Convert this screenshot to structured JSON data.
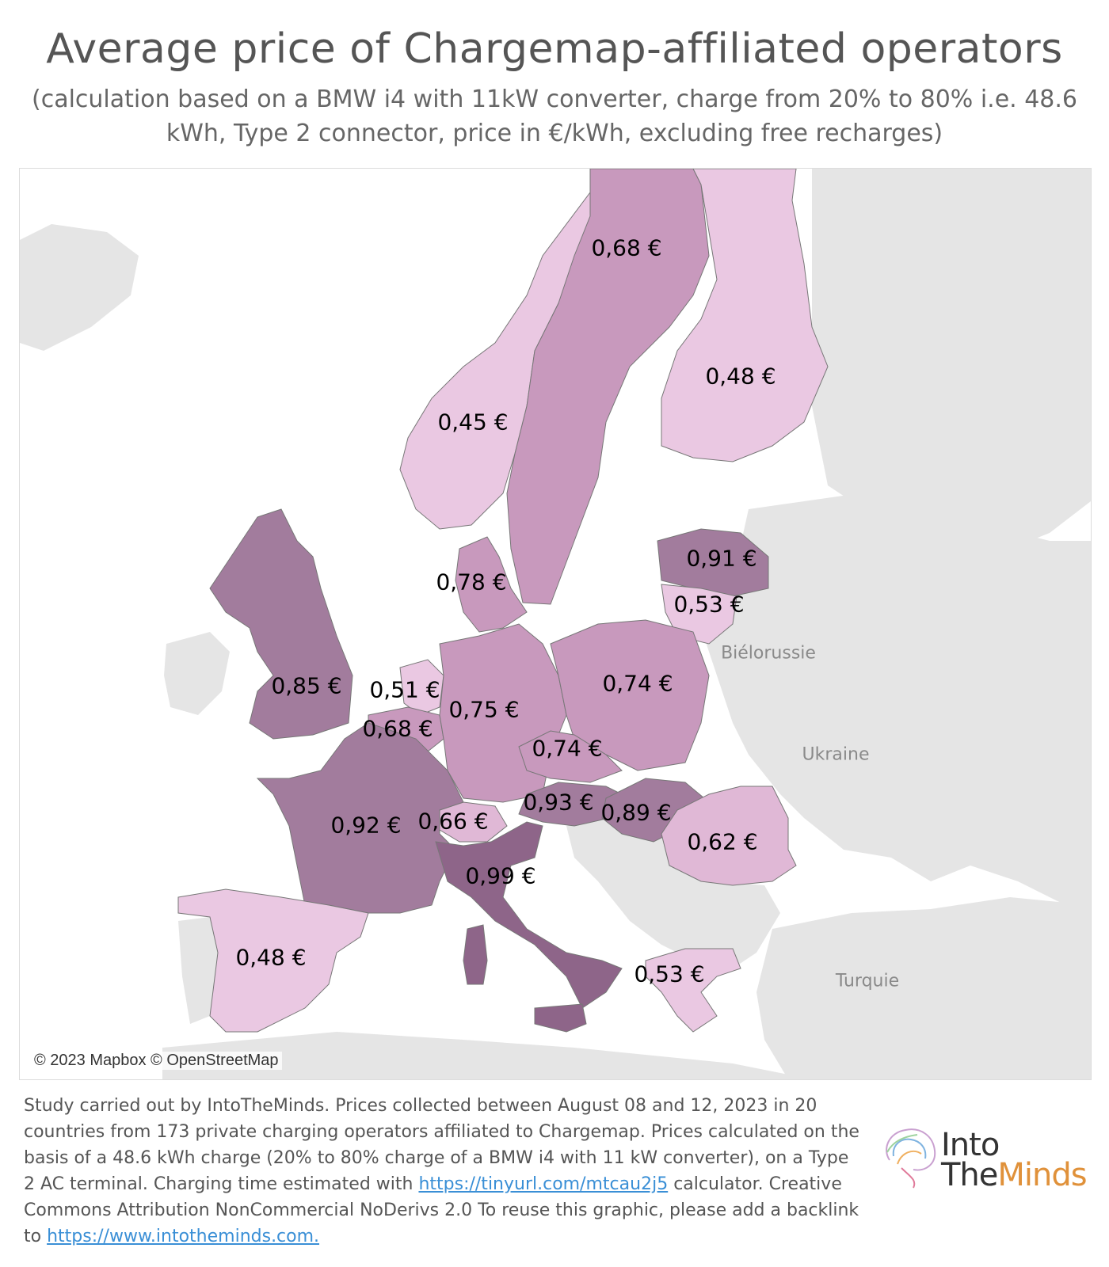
{
  "title": "Average price of Chargemap-affiliated operators",
  "subtitle": "(calculation based on a BMW i4 with 11kW converter, charge from 20% to 80% i.e. 48.6 kWh, Type 2 connector, price in €/kWh, excluding free recharges)",
  "colors": {
    "land_other": "#e5e5e5",
    "sea": "#ffffff",
    "border": "#777777",
    "scale_low": "#eac8e2",
    "scale_high": "#8e6589"
  },
  "map": {
    "attribution": "© 2023 Mapbox © OpenStreetMap",
    "geo_labels": {
      "belarus": "Biélorussie",
      "ukraine": "Ukraine",
      "turkey": "Turquie"
    },
    "prices": [
      {
        "country": "Sweden",
        "label": "0,68 €",
        "value": 0.68
      },
      {
        "country": "Finland",
        "label": "0,48 €",
        "value": 0.48
      },
      {
        "country": "Norway",
        "label": "0,45 €",
        "value": 0.45
      },
      {
        "country": "Latvia",
        "label": "0,91 €",
        "value": 0.91
      },
      {
        "country": "Denmark",
        "label": "0,78 €",
        "value": 0.78
      },
      {
        "country": "Lithuania",
        "label": "0,53 €",
        "value": 0.53
      },
      {
        "country": "United Kingdom",
        "label": "0,85 €",
        "value": 0.85
      },
      {
        "country": "Netherlands",
        "label": "0,51 €",
        "value": 0.51
      },
      {
        "country": "Poland",
        "label": "0,74 €",
        "value": 0.74
      },
      {
        "country": "Germany",
        "label": "0,75 €",
        "value": 0.75
      },
      {
        "country": "Belgium",
        "label": "0,68 €",
        "value": 0.68
      },
      {
        "country": "Czechia",
        "label": "0,74 €",
        "value": 0.74
      },
      {
        "country": "Austria",
        "label": "0,93 €",
        "value": 0.93
      },
      {
        "country": "Hungary",
        "label": "0,89 €",
        "value": 0.89
      },
      {
        "country": "France",
        "label": "0,92 €",
        "value": 0.92
      },
      {
        "country": "Switzerland",
        "label": "0,66 €",
        "value": 0.66
      },
      {
        "country": "Romania",
        "label": "0,62 €",
        "value": 0.62
      },
      {
        "country": "Italy",
        "label": "0,99 €",
        "value": 0.99
      },
      {
        "country": "Spain",
        "label": "0,48 €",
        "value": 0.48
      },
      {
        "country": "Greece",
        "label": "0,53 €",
        "value": 0.53
      }
    ]
  },
  "footer": {
    "text1": "Study carried out by IntoTheMinds. Prices collected between August 08 and 12, 2023 in 20 countries from 173 private charging operators affiliated to Chargemap. Prices calculated on the basis of a 48.6 kWh charge (20% to 80% charge of a BMW i4 with 11 kW converter), on a Type 2 AC terminal. Charging time estimated with ",
    "link1": "https://tinyurl.com/mtcau2j5",
    "text2": " calculator. Creative Commons Attribution NonCommercial NoDerivs 2.0 To reuse this graphic, please add a backlink to ",
    "link2": "https://www.intotheminds.com."
  },
  "logo": {
    "line1": "Into",
    "line2a": "The",
    "line2b": "Minds"
  }
}
